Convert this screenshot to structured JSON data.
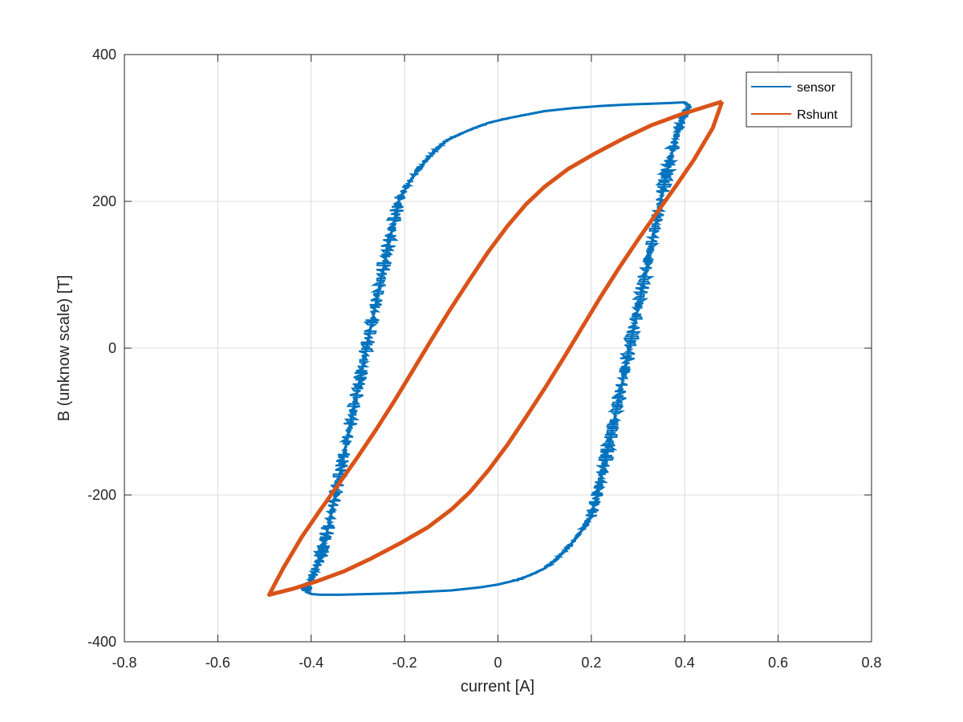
{
  "chart_data": {
    "type": "line",
    "title": "",
    "xlabel": "current [A]",
    "ylabel": "B (unknow scale) [T]",
    "xlim": [
      -0.8,
      0.8
    ],
    "ylim": [
      -400,
      400
    ],
    "xticks": [
      -0.8,
      -0.6,
      -0.4,
      -0.2,
      0,
      0.2,
      0.4,
      0.6,
      0.8
    ],
    "yticks": [
      -400,
      -200,
      0,
      200,
      400
    ],
    "xtick_labels": [
      "-0.8",
      "-0.6",
      "-0.4",
      "-0.2",
      "0",
      "0.2",
      "0.4",
      "0.6",
      "0.8"
    ],
    "ytick_labels": [
      "-400",
      "-200",
      "0",
      "200",
      "400"
    ],
    "grid": true,
    "legend_position": "top-right",
    "series": [
      {
        "name": "sensor",
        "color": "#0072BD",
        "noisy": true,
        "x": [
          0.4,
          0.37,
          0.33,
          0.28,
          0.22,
          0.16,
          0.1,
          0.06,
          0.02,
          -0.02,
          -0.05,
          -0.08,
          -0.11,
          -0.13,
          -0.15,
          -0.17,
          -0.19,
          -0.21,
          -0.22,
          -0.23,
          -0.24,
          -0.25,
          -0.26,
          -0.27,
          -0.28,
          -0.29,
          -0.3,
          -0.31,
          -0.32,
          -0.33,
          -0.34,
          -0.35,
          -0.36,
          -0.37,
          -0.38,
          -0.39,
          -0.4,
          -0.41,
          -0.41,
          -0.4,
          -0.38,
          -0.34,
          -0.28,
          -0.22,
          -0.16,
          -0.1,
          -0.04,
          0.0,
          0.04,
          0.07,
          0.1,
          0.12,
          0.14,
          0.16,
          0.18,
          0.2,
          0.21,
          0.22,
          0.23,
          0.24,
          0.25,
          0.26,
          0.27,
          0.28,
          0.29,
          0.3,
          0.31,
          0.32,
          0.33,
          0.34,
          0.35,
          0.36,
          0.37,
          0.38,
          0.39,
          0.4,
          0.41,
          0.4
        ],
        "y": [
          335,
          334,
          333,
          332,
          330,
          327,
          323,
          318,
          313,
          307,
          300,
          292,
          283,
          272,
          259,
          244,
          226,
          205,
          180,
          153,
          125,
          95,
          65,
          35,
          5,
          -25,
          -55,
          -85,
          -115,
          -145,
          -175,
          -205,
          -235,
          -260,
          -285,
          -300,
          -315,
          -325,
          -332,
          -335,
          -336,
          -336,
          -335,
          -334,
          -332,
          -330,
          -326,
          -322,
          -316,
          -309,
          -300,
          -290,
          -278,
          -264,
          -248,
          -228,
          -205,
          -180,
          -152,
          -124,
          -95,
          -65,
          -35,
          -5,
          25,
          55,
          85,
          115,
          145,
          175,
          205,
          235,
          260,
          285,
          305,
          320,
          330,
          335
        ]
      },
      {
        "name": "Rshunt",
        "color": "#D95319",
        "noisy": false,
        "x": [
          0.48,
          0.44,
          0.39,
          0.33,
          0.27,
          0.21,
          0.15,
          0.1,
          0.06,
          0.02,
          -0.02,
          -0.06,
          -0.1,
          -0.14,
          -0.18,
          -0.22,
          -0.26,
          -0.3,
          -0.34,
          -0.38,
          -0.42,
          -0.46,
          -0.49,
          -0.44,
          -0.39,
          -0.33,
          -0.27,
          -0.21,
          -0.15,
          -0.1,
          -0.06,
          -0.02,
          0.02,
          0.06,
          0.1,
          0.14,
          0.18,
          0.22,
          0.26,
          0.3,
          0.34,
          0.38,
          0.42,
          0.46,
          0.48
        ],
        "y": [
          336,
          328,
          318,
          304,
          286,
          266,
          244,
          220,
          196,
          166,
          132,
          94,
          55,
          14,
          -28,
          -70,
          -110,
          -148,
          -184,
          -220,
          -257,
          -300,
          -336,
          -328,
          -318,
          -304,
          -286,
          -266,
          -244,
          -220,
          -196,
          -166,
          -132,
          -94,
          -55,
          -14,
          28,
          70,
          110,
          148,
          184,
          220,
          257,
          300,
          336
        ]
      }
    ]
  }
}
